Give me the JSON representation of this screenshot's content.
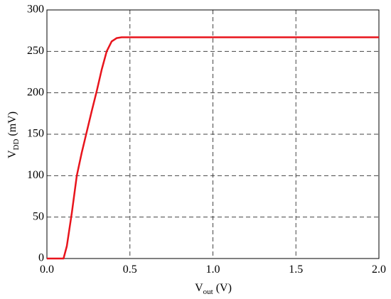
{
  "chart_data": {
    "type": "line",
    "xlabel": [
      "V",
      "out",
      " (V)"
    ],
    "ylabel": [
      "V",
      "DD",
      " (mV)"
    ],
    "x": [
      0,
      0.1,
      0.12,
      0.15,
      0.18,
      0.21,
      0.24,
      0.27,
      0.3,
      0.33,
      0.36,
      0.39,
      0.42,
      0.45,
      0.5,
      1.0,
      1.5,
      2.0
    ],
    "series": [
      {
        "color": "#e8141c",
        "values": [
          0,
          0,
          15,
          55,
          100,
          128,
          153,
          178,
          202,
          228,
          250,
          262,
          266,
          267,
          267,
          267,
          267,
          267
        ]
      }
    ],
    "xlim": [
      0,
      2.0
    ],
    "ylim": [
      0,
      300
    ],
    "xticks": [
      {
        "value": 0,
        "label": "0.0"
      },
      0.5,
      {
        "value": 1,
        "label": "1.0"
      },
      1.5,
      {
        "value": 2,
        "label": "2.0"
      }
    ],
    "yticks": [
      0,
      50,
      100,
      150,
      200,
      250,
      300
    ],
    "grid": true
  }
}
